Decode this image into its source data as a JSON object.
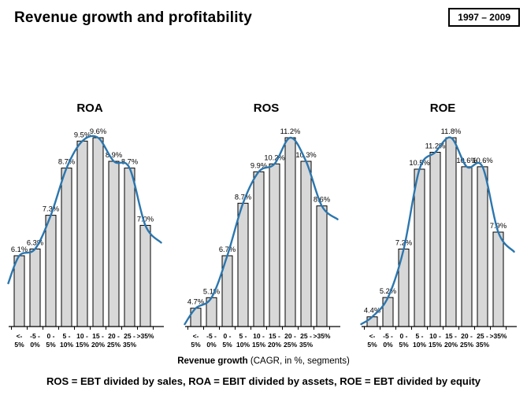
{
  "header": {
    "title": "Revenue growth and profitability",
    "period_badge": "1997 – 2009"
  },
  "xaxis": {
    "bold": "Revenue growth",
    "rest": " (CAGR, in %, segments)"
  },
  "footnote": "ROS = EBT divided by sales, ROA = EBIT divided by assets, ROE = EBT divided by equity",
  "colors": {
    "bar_fill": "#d8d8d8",
    "bar_border": "#000000",
    "curve": "#2b76ae",
    "axis": "#000000"
  },
  "charts_shared": {
    "tick_labels": [
      {
        "l1": "<-",
        "l2": "5%"
      },
      {
        "l1": "-5 -",
        "l2": "0%"
      },
      {
        "l1": "0 -",
        "l2": "5%"
      },
      {
        "l1": "5 -",
        "l2": "10%"
      },
      {
        "l1": "10 -",
        "l2": "15%"
      },
      {
        "l1": "15 -",
        "l2": "20%"
      },
      {
        "l1": "20 -",
        "l2": "25%"
      },
      {
        "l1": "25 -",
        "l2": "35%"
      },
      {
        "l1": ">35%",
        "l2": ""
      }
    ]
  },
  "chart_data": [
    {
      "type": "bar",
      "title": "ROA",
      "categories": [
        "<-5%",
        "-5-0%",
        "0-5%",
        "5-10%",
        "10-15%",
        "15-20%",
        "20-25%",
        "25-35%",
        ">35%"
      ],
      "values": [
        6.1,
        6.3,
        7.3,
        8.7,
        9.5,
        9.6,
        8.9,
        8.7,
        7.0
      ],
      "labels": [
        "6.1%",
        "6.3%",
        "7.3%",
        "8.7%",
        "9.5%",
        "9.6%",
        "8.9%",
        "8.7%",
        "7.0%"
      ],
      "ylim": [
        4.0,
        9.6
      ],
      "trend_curve": true,
      "xlabel": "Revenue growth (CAGR, in %, segments)",
      "ylabel": "ROA (EBIT divided by assets)"
    },
    {
      "type": "bar",
      "title": "ROS",
      "categories": [
        "<-5%",
        "-5-0%",
        "0-5%",
        "5-10%",
        "10-15%",
        "15-20%",
        "20-25%",
        "25-35%",
        ">35%"
      ],
      "values": [
        4.7,
        5.1,
        6.7,
        8.7,
        9.9,
        10.2,
        11.2,
        10.3,
        8.6
      ],
      "labels": [
        "4.7%",
        "5.1%",
        "6.7%",
        "8.7%",
        "9.9%",
        "10.2%",
        "11.2%",
        "10.3%",
        "8.6%"
      ],
      "ylim": [
        4.0,
        11.2
      ],
      "trend_curve": true,
      "xlabel": "Revenue growth (CAGR, in %, segments)",
      "ylabel": "ROS (EBT divided by sales)"
    },
    {
      "type": "bar",
      "title": "ROE",
      "categories": [
        "<-5%",
        "-5-0%",
        "0-5%",
        "5-10%",
        "10-15%",
        "15-20%",
        "20-25%",
        "25-35%",
        ">35%"
      ],
      "values": [
        4.4,
        5.2,
        7.2,
        10.5,
        11.2,
        11.8,
        10.6,
        10.6,
        7.9
      ],
      "labels": [
        "4.4%",
        "5.2%",
        "7.2%",
        "10.5%",
        "11.2%",
        "11.8%",
        "10.6%",
        "10.6%",
        "7.9%"
      ],
      "ylim": [
        4.0,
        11.8
      ],
      "trend_curve": true,
      "xlabel": "Revenue growth (CAGR, in %, segments)",
      "ylabel": "ROE (EBT divided by equity)"
    }
  ]
}
